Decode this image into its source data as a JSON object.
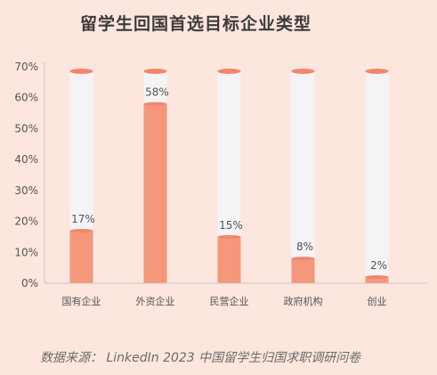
{
  "chart_data": {
    "type": "bar",
    "title": "留学生回国首选目标企业类型",
    "categories": [
      "国有企业",
      "外资企业",
      "民营企业",
      "政府机构",
      "创业"
    ],
    "values": [
      17,
      58,
      15,
      8,
      2
    ],
    "value_labels": [
      "17%",
      "58%",
      "15%",
      "8%",
      "2%"
    ],
    "ylim": [
      0,
      70
    ],
    "yticks": [
      0,
      10,
      20,
      30,
      40,
      50,
      60,
      70
    ],
    "ytick_labels": [
      "0%",
      "10%",
      "20%",
      "30%",
      "40%",
      "50%",
      "60%",
      "70%"
    ],
    "xlabel": "",
    "ylabel": "",
    "grid": false,
    "style": "cylinder bars with full-height track",
    "colors": {
      "fill": "#f4977b",
      "track": "#f4f4f6",
      "cap": "#f0876d",
      "axis": "#c9c9c9",
      "text": "#555555"
    }
  },
  "source": "数据来源：  LinkedIn 2023 中国留学生归国求职调研问卷"
}
